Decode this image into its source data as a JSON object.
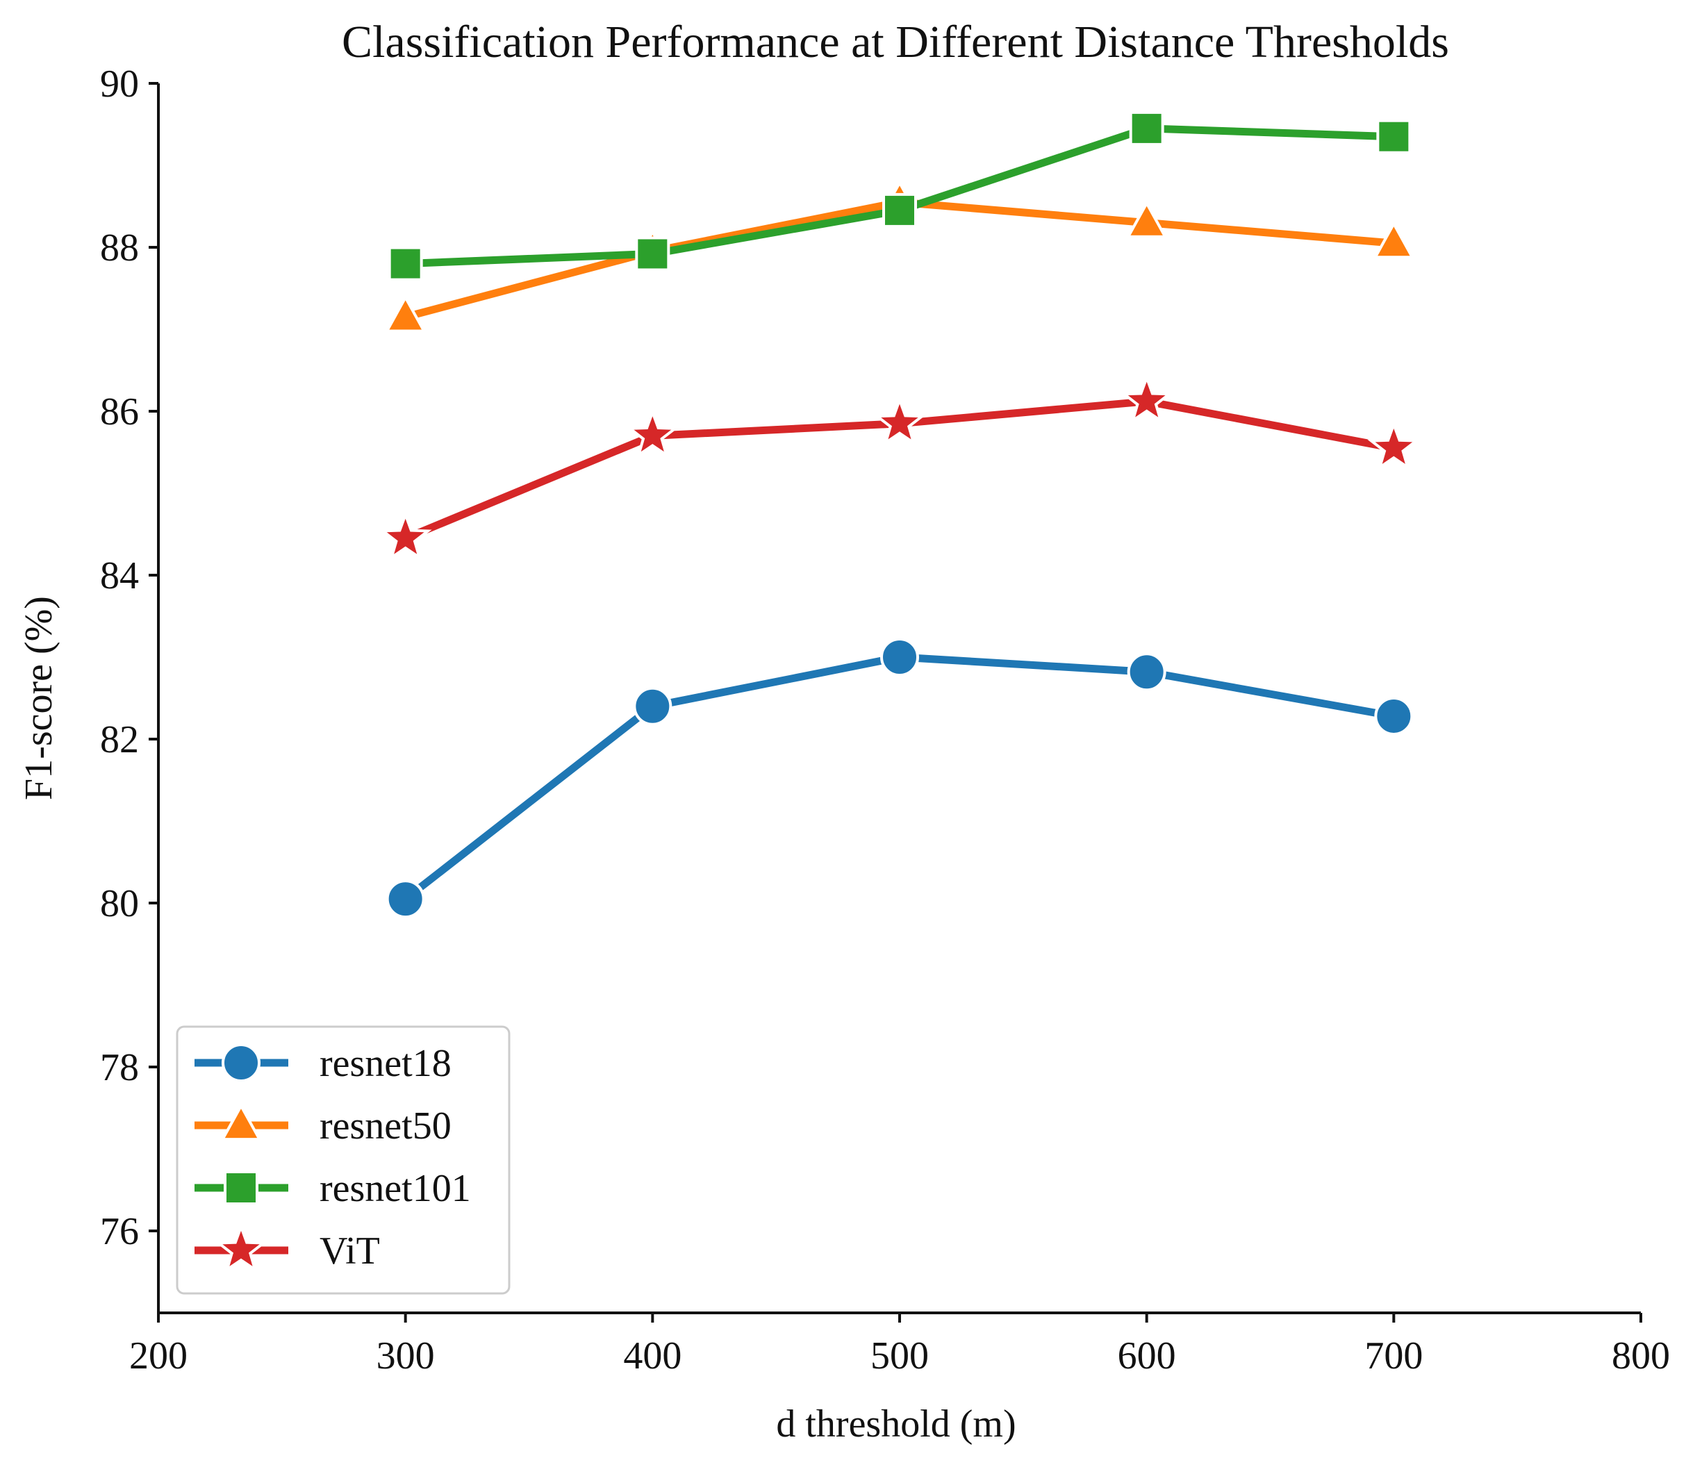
{
  "chart_data": {
    "type": "line",
    "title": "Classification Performance at Different Distance Thresholds",
    "xlabel": "d threshold (m)",
    "ylabel": "F1-score (%)",
    "xlim": [
      200,
      800
    ],
    "ylim": [
      75,
      90
    ],
    "x_ticks": [
      "200",
      "300",
      "400",
      "500",
      "600",
      "700",
      "800"
    ],
    "y_ticks": [
      "76",
      "78",
      "80",
      "82",
      "84",
      "86",
      "88",
      "90"
    ],
    "x": [
      300,
      400,
      500,
      600,
      700
    ],
    "grid": false,
    "legend_position": "lower-left",
    "series": [
      {
        "name": "resnet18",
        "color": "#1f77b4",
        "marker": "circle",
        "values": [
          80.05,
          82.4,
          83.0,
          82.82,
          82.28
        ]
      },
      {
        "name": "resnet50",
        "color": "#ff7f0e",
        "marker": "triangle",
        "values": [
          87.15,
          87.95,
          88.55,
          88.3,
          88.05
        ]
      },
      {
        "name": "resnet101",
        "color": "#2ca02c",
        "marker": "square",
        "values": [
          87.8,
          87.92,
          88.45,
          89.45,
          89.35
        ]
      },
      {
        "name": "ViT",
        "color": "#d62728",
        "marker": "star",
        "values": [
          84.45,
          85.7,
          85.85,
          86.12,
          85.55
        ]
      }
    ]
  }
}
